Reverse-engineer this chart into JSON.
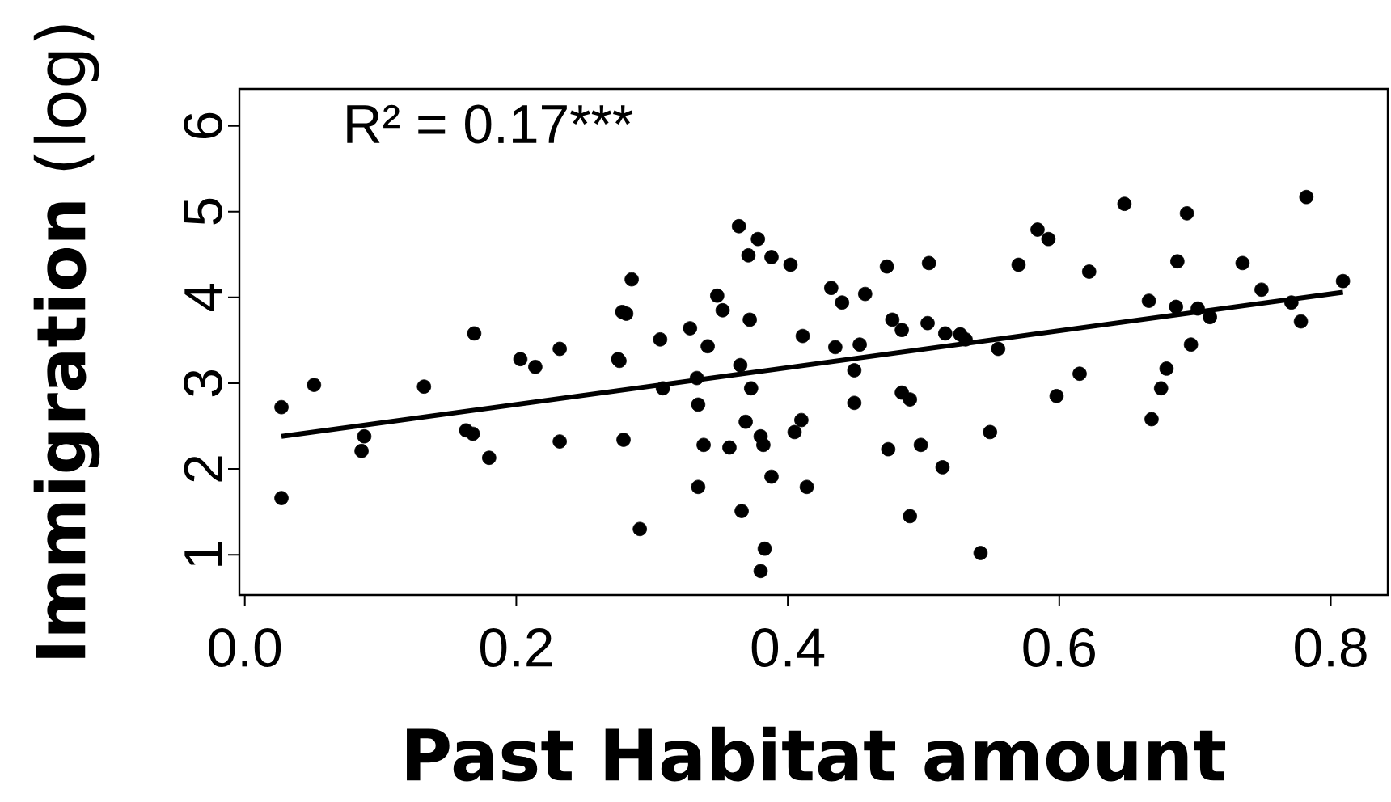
{
  "chart_data": {
    "type": "scatter",
    "xlabel": "Past Habitat amount",
    "ylabel": "**Immigration** (log)",
    "annotations": [
      "R² = 0.17***"
    ],
    "xlim": [
      -0.004,
      0.842
    ],
    "ylim": [
      0.53,
      6.43
    ],
    "xticks": [
      {
        "value": 0,
        "label": "0.0"
      },
      0.2,
      0.4,
      0.6,
      0.8
    ],
    "yticks": [
      1,
      2,
      3,
      4,
      5,
      6
    ],
    "grid": false,
    "series": [
      {
        "color": "#000000",
        "marker": "circle",
        "x": [
          0.027,
          0.027,
          0.051,
          0.086,
          0.088,
          0.132,
          0.169,
          0.163,
          0.168,
          0.18,
          0.203,
          0.214,
          0.232,
          0.232,
          0.275,
          0.278,
          0.285,
          0.281,
          0.279,
          0.291,
          0.364,
          0.378,
          0.371,
          0.388,
          0.402,
          0.306,
          0.328,
          0.341,
          0.348,
          0.352,
          0.372,
          0.365,
          0.373,
          0.333,
          0.308,
          0.276,
          0.334,
          0.369,
          0.338,
          0.357,
          0.38,
          0.382,
          0.405,
          0.41,
          0.334,
          0.388,
          0.414,
          0.366,
          0.383,
          0.38,
          0.411,
          0.432,
          0.44,
          0.457,
          0.473,
          0.504,
          0.435,
          0.453,
          0.449,
          0.449,
          0.477,
          0.484,
          0.503,
          0.516,
          0.527,
          0.531,
          0.555,
          0.484,
          0.49,
          0.474,
          0.498,
          0.514,
          0.549,
          0.49,
          0.542,
          0.648,
          0.694,
          0.782,
          0.584,
          0.592,
          0.57,
          0.622,
          0.687,
          0.735,
          0.749,
          0.809,
          0.666,
          0.686,
          0.702,
          0.711,
          0.771,
          0.778,
          0.697,
          0.679,
          0.675,
          0.615,
          0.598,
          0.668
        ],
        "values": [
          2.72,
          1.66,
          2.98,
          2.21,
          2.38,
          2.96,
          3.58,
          2.45,
          2.41,
          2.13,
          3.28,
          3.19,
          3.4,
          2.32,
          3.28,
          3.83,
          4.21,
          3.81,
          2.34,
          1.3,
          4.83,
          4.68,
          4.49,
          4.47,
          4.38,
          3.51,
          3.64,
          3.43,
          4.02,
          3.85,
          3.74,
          3.21,
          2.94,
          3.06,
          2.94,
          3.26,
          2.75,
          2.55,
          2.28,
          2.25,
          2.38,
          2.28,
          2.43,
          2.57,
          1.79,
          1.91,
          1.79,
          1.51,
          1.07,
          0.81,
          3.55,
          4.11,
          3.94,
          4.04,
          4.36,
          4.4,
          3.42,
          3.45,
          3.15,
          2.77,
          3.74,
          3.62,
          3.7,
          3.58,
          3.57,
          3.51,
          3.4,
          2.89,
          2.81,
          2.23,
          2.28,
          2.02,
          2.43,
          1.45,
          1.02,
          5.09,
          4.98,
          5.17,
          4.79,
          4.68,
          4.38,
          4.3,
          4.42,
          4.4,
          4.09,
          4.19,
          3.96,
          3.89,
          3.87,
          3.77,
          3.94,
          3.72,
          3.45,
          3.17,
          2.94,
          3.11,
          2.85,
          2.58
        ]
      },
      {
        "type": "line",
        "color": "#000000",
        "x": [
          0.027,
          0.809
        ],
        "values": [
          2.38,
          4.06
        ],
        "marker": "none",
        "line_style": "solid"
      }
    ]
  }
}
